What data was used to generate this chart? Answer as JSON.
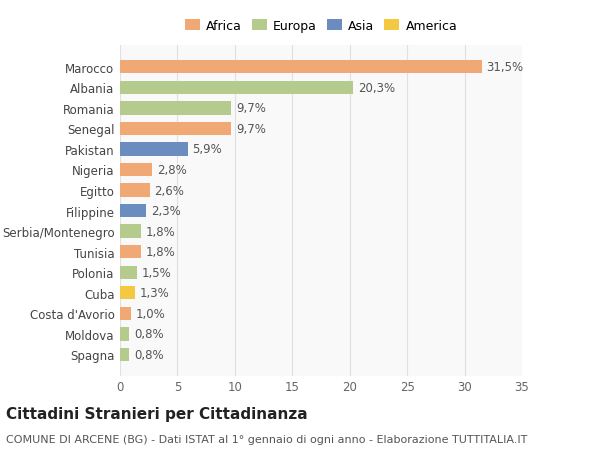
{
  "categories": [
    "Spagna",
    "Moldova",
    "Costa d'Avorio",
    "Cuba",
    "Polonia",
    "Tunisia",
    "Serbia/Montenegro",
    "Filippine",
    "Egitto",
    "Nigeria",
    "Pakistan",
    "Senegal",
    "Romania",
    "Albania",
    "Marocco"
  ],
  "values": [
    0.8,
    0.8,
    1.0,
    1.3,
    1.5,
    1.8,
    1.8,
    2.3,
    2.6,
    2.8,
    5.9,
    9.7,
    9.7,
    20.3,
    31.5
  ],
  "labels": [
    "0,8%",
    "0,8%",
    "1,0%",
    "1,3%",
    "1,5%",
    "1,8%",
    "1,8%",
    "2,3%",
    "2,6%",
    "2,8%",
    "5,9%",
    "9,7%",
    "9,7%",
    "20,3%",
    "31,5%"
  ],
  "continents": [
    "Europa",
    "Europa",
    "Africa",
    "America",
    "Europa",
    "Africa",
    "Europa",
    "Asia",
    "Africa",
    "Africa",
    "Asia",
    "Africa",
    "Europa",
    "Europa",
    "Africa"
  ],
  "continent_colors": {
    "Africa": "#F0A875",
    "Europa": "#B5CA8D",
    "Asia": "#6B8CBE",
    "America": "#F5C842"
  },
  "legend_order": [
    "Africa",
    "Europa",
    "Asia",
    "America"
  ],
  "title": "Cittadini Stranieri per Cittadinanza",
  "subtitle": "COMUNE DI ARCENE (BG) - Dati ISTAT al 1° gennaio di ogni anno - Elaborazione TUTTITALIA.IT",
  "xlim": [
    0,
    35
  ],
  "xticks": [
    0,
    5,
    10,
    15,
    20,
    25,
    30,
    35
  ],
  "background_color": "#ffffff",
  "plot_background": "#f9f9f9",
  "grid_color": "#e0e0e0",
  "bar_height": 0.65,
  "label_fontsize": 8.5,
  "tick_fontsize": 8.5,
  "title_fontsize": 11,
  "subtitle_fontsize": 8
}
